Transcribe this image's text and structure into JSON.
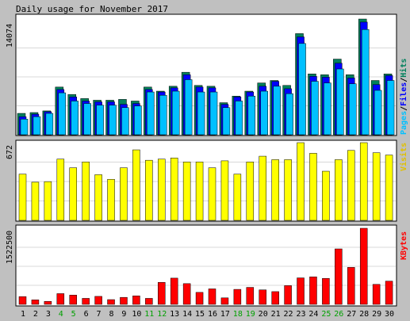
{
  "title": "Daily usage for November 2017",
  "colors": {
    "background": "#c0c0c0",
    "panel": "#ffffff",
    "border": "#000000",
    "grid": "#d8d8d8",
    "hits": "#00805c",
    "files": "#0000ff",
    "pages": "#00c0ff",
    "visits": "#ffff00",
    "kbytes": "#ff0000",
    "weekend_label": "#00a000",
    "weekday_label": "#000000"
  },
  "legend": {
    "pages": "Pages",
    "files": "Files",
    "hits": "Hits",
    "sep": "/",
    "visits": "Visits",
    "kbytes": "KBytes"
  },
  "chart_data": {
    "type": "bar",
    "categories": [
      "1",
      "2",
      "3",
      "4",
      "5",
      "6",
      "7",
      "8",
      "9",
      "10",
      "11",
      "12",
      "13",
      "14",
      "15",
      "16",
      "17",
      "18",
      "19",
      "20",
      "21",
      "22",
      "23",
      "24",
      "25",
      "26",
      "27",
      "28",
      "29",
      "30"
    ],
    "weekend_days": [
      "4",
      "5",
      "11",
      "12",
      "18",
      "19",
      "25",
      "26"
    ],
    "panels": [
      {
        "name": "hits-files-pages",
        "ymax_label": "14074",
        "ymax": 14074,
        "series": [
          {
            "name": "Hits",
            "values": [
              2600,
              2700,
              2900,
              5800,
              4900,
              4400,
              4200,
              4200,
              4300,
              4100,
              5800,
              5300,
              5900,
              7600,
              6000,
              5900,
              3900,
              4700,
              5300,
              6300,
              6600,
              6000,
              12300,
              7400,
              7300,
              9200,
              7300,
              14074,
              6600,
              7400
            ]
          },
          {
            "name": "Files",
            "values": [
              2200,
              2500,
              2800,
              5500,
              4600,
              4100,
              4000,
              4000,
              3700,
              3800,
              5500,
              5200,
              5700,
              7300,
              5800,
              5700,
              3700,
              4600,
              5200,
              5900,
              6500,
              5600,
              11900,
              7100,
              7000,
              8700,
              6900,
              13700,
              6100,
              7200
            ]
          },
          {
            "name": "Pages",
            "values": [
              1900,
              2200,
              2600,
              5100,
              4100,
              3800,
              3600,
              3600,
              3300,
              3500,
              5200,
              4800,
              5300,
              6700,
              5200,
              5200,
              3300,
              4100,
              4700,
              5300,
              5900,
              5000,
              11100,
              6500,
              6300,
              8000,
              6200,
              12800,
              5400,
              6600
            ]
          }
        ]
      },
      {
        "name": "visits",
        "ymax_label": "672",
        "ymax": 672,
        "series": [
          {
            "name": "Visits",
            "values": [
              400,
              330,
              335,
              530,
              455,
              505,
              395,
              355,
              455,
              610,
              520,
              530,
              540,
              505,
              505,
              455,
              515,
              400,
              505,
              555,
              525,
              525,
              672,
              580,
              425,
              525,
              605,
              672,
              585,
              565
            ]
          }
        ]
      },
      {
        "name": "kbytes",
        "ymax_label": "1522500",
        "ymax": 1522500,
        "series": [
          {
            "name": "KBytes",
            "values": [
              155000,
              90000,
              60000,
              215000,
              185000,
              120000,
              160000,
              95000,
              140000,
              170000,
              120000,
              440000,
              525000,
              415000,
              240000,
              310000,
              130000,
              300000,
              340000,
              290000,
              255000,
              375000,
              530000,
              550000,
              520000,
              1110000,
              740000,
              1522500,
              400000,
              465000
            ]
          }
        ]
      }
    ]
  }
}
